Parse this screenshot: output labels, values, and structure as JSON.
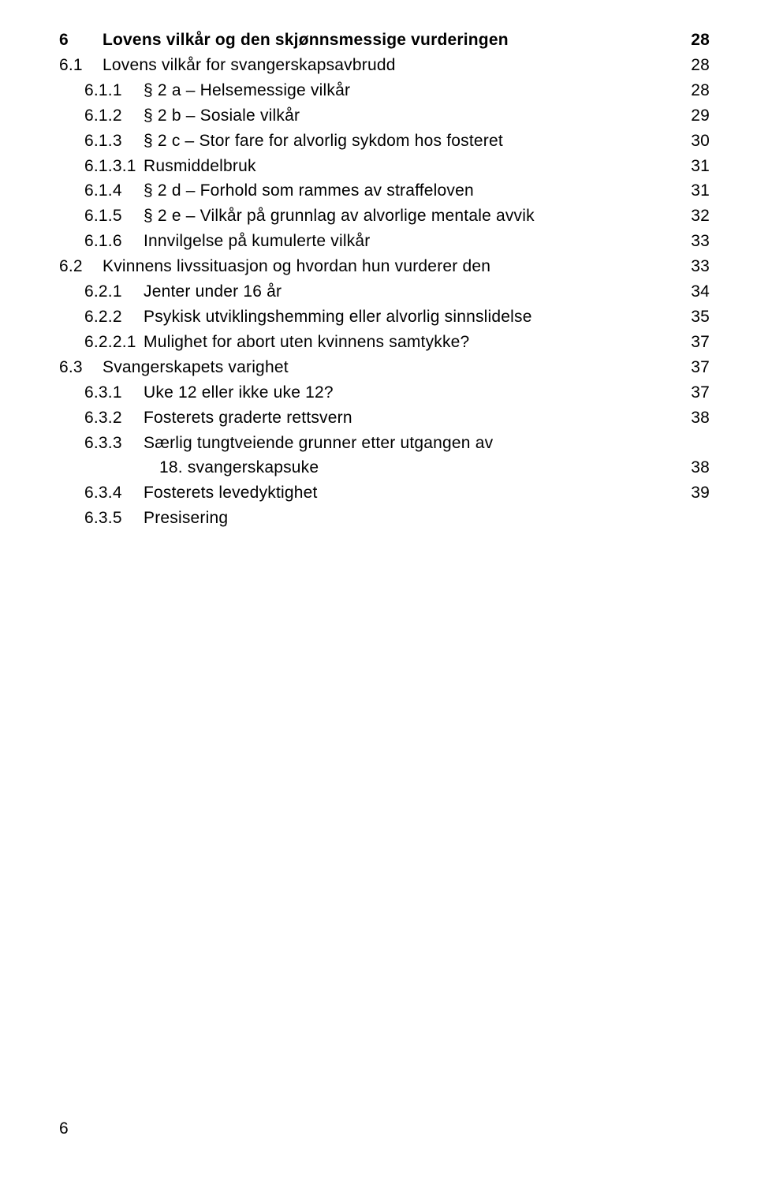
{
  "toc": [
    {
      "level": 0,
      "bold": true,
      "num": "6",
      "label": "Lovens vilkår og den skjønnsmessige vurderingen",
      "page": "28"
    },
    {
      "level": 0,
      "bold": false,
      "num": "6.1",
      "label": "Lovens vilkår for svangerskapsavbrudd",
      "page": "28"
    },
    {
      "level": 1,
      "bold": false,
      "num": "6.1.1",
      "label": "§ 2 a – Helsemessige vilkår",
      "page": "28"
    },
    {
      "level": 1,
      "bold": false,
      "num": "6.1.2",
      "label": "§ 2 b – Sosiale vilkår",
      "page": "29"
    },
    {
      "level": 1,
      "bold": false,
      "num": "6.1.3",
      "label": "§ 2 c – Stor fare for alvorlig sykdom hos fosteret",
      "page": "30"
    },
    {
      "level": 1,
      "bold": false,
      "num": "6.1.3.1",
      "label": "Rusmiddelbruk",
      "page": "31"
    },
    {
      "level": 1,
      "bold": false,
      "num": "6.1.4",
      "label": "§ 2 d – Forhold som rammes av straffeloven",
      "page": "31"
    },
    {
      "level": 1,
      "bold": false,
      "num": "6.1.5",
      "label": "§ 2 e – Vilkår på grunnlag av alvorlige mentale avvik",
      "page": "32"
    },
    {
      "level": 1,
      "bold": false,
      "num": "6.1.6",
      "label": "Innvilgelse på kumulerte vilkår",
      "page": "33"
    },
    {
      "level": 0,
      "bold": false,
      "num": "6.2",
      "label": "Kvinnens livssituasjon og hvordan hun vurderer den",
      "page": "33"
    },
    {
      "level": 1,
      "bold": false,
      "num": "6.2.1",
      "label": "Jenter under 16 år",
      "page": "34"
    },
    {
      "level": 1,
      "bold": false,
      "num": "6.2.2",
      "label": "Psykisk utviklingshemming eller alvorlig sinnslidelse",
      "page": "35"
    },
    {
      "level": 1,
      "bold": false,
      "num": "6.2.2.1",
      "label": "Mulighet for abort uten kvinnens samtykke?",
      "page": "37"
    },
    {
      "level": 0,
      "bold": false,
      "num": "6.3",
      "label": "Svangerskapets varighet",
      "page": "37"
    },
    {
      "level": 1,
      "bold": false,
      "num": "6.3.1",
      "label": "Uke 12 eller ikke uke 12?",
      "page": "37"
    },
    {
      "level": 1,
      "bold": false,
      "num": "6.3.2",
      "label": "Fosterets graderte rettsvern",
      "page": "38"
    },
    {
      "level": 1,
      "bold": false,
      "num": "6.3.3",
      "label": "Særlig tungtveiende grunner etter utgangen av",
      "page": ""
    },
    {
      "level": 2,
      "bold": false,
      "num": "",
      "label": "18. svangerskapsuke",
      "page": "38"
    },
    {
      "level": 1,
      "bold": false,
      "num": "6.3.4",
      "label": "Fosterets levedyktighet",
      "page": "39"
    },
    {
      "level": 1,
      "bold": false,
      "num": "6.3.5",
      "label": "Presisering",
      "page": ""
    }
  ],
  "page_number": "6"
}
